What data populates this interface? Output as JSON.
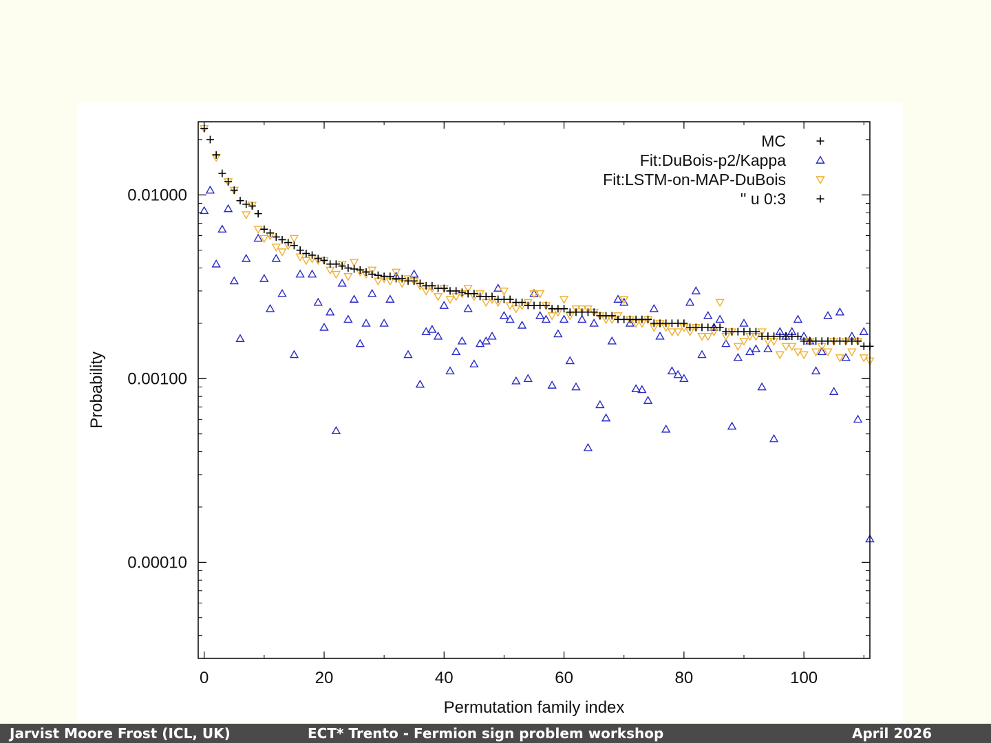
{
  "chart_data": {
    "type": "scatter",
    "title": "",
    "xlabel": "Permutation family index",
    "ylabel": "Probability",
    "xlim": [
      -1,
      111
    ],
    "ylim": [
      3e-05,
      0.025
    ],
    "yscale": "log",
    "legend_position": "top-right",
    "x_ticks": [
      0,
      20,
      40,
      60,
      80,
      100
    ],
    "x_tick_labels": [
      "0",
      "20",
      "40",
      "60",
      "80",
      "100"
    ],
    "y_ticks": [
      0.0001,
      0.001,
      0.01
    ],
    "y_tick_labels": [
      "0.00010",
      "0.00100",
      "0.01000"
    ],
    "series": [
      {
        "name": "MC",
        "marker": "plus",
        "color": "#000000",
        "x": [
          0,
          1,
          2,
          3,
          4,
          5,
          6,
          7,
          8,
          9,
          10,
          11,
          12,
          13,
          14,
          15,
          16,
          17,
          18,
          19,
          20,
          21,
          22,
          23,
          24,
          25,
          26,
          27,
          28,
          29,
          30,
          31,
          32,
          33,
          34,
          35,
          36,
          37,
          38,
          39,
          40,
          41,
          42,
          43,
          44,
          45,
          46,
          47,
          48,
          49,
          50,
          51,
          52,
          53,
          54,
          55,
          56,
          57,
          58,
          59,
          60,
          61,
          62,
          63,
          64,
          65,
          66,
          67,
          68,
          69,
          70,
          71,
          72,
          73,
          74,
          75,
          76,
          77,
          78,
          79,
          80,
          81,
          82,
          83,
          84,
          85,
          86,
          87,
          88,
          89,
          90,
          91,
          92,
          93,
          94,
          95,
          96,
          97,
          98,
          99,
          100,
          101,
          102,
          103,
          104,
          105,
          106,
          107,
          108,
          109,
          110,
          111
        ],
        "values": [
          0.023,
          0.02,
          0.0165,
          0.0131,
          0.0118,
          0.0106,
          0.0093,
          0.0089,
          0.0087,
          0.0079,
          0.0065,
          0.0062,
          0.0059,
          0.0057,
          0.0055,
          0.0053,
          0.005,
          0.0048,
          0.0047,
          0.0045,
          0.0044,
          0.0042,
          0.0042,
          0.0041,
          0.004,
          0.00395,
          0.0039,
          0.0038,
          0.0037,
          0.00365,
          0.0036,
          0.0036,
          0.0035,
          0.0035,
          0.0034,
          0.0034,
          0.0033,
          0.0032,
          0.0032,
          0.0031,
          0.0031,
          0.003,
          0.003,
          0.00295,
          0.0029,
          0.0029,
          0.0028,
          0.0028,
          0.0028,
          0.0027,
          0.0027,
          0.0027,
          0.0026,
          0.0026,
          0.0025,
          0.0025,
          0.0025,
          0.0025,
          0.0024,
          0.0024,
          0.0024,
          0.0023,
          0.0023,
          0.0023,
          0.0023,
          0.0023,
          0.0022,
          0.0022,
          0.0022,
          0.0021,
          0.0021,
          0.0021,
          0.0021,
          0.0021,
          0.0021,
          0.002,
          0.002,
          0.002,
          0.002,
          0.002,
          0.002,
          0.0019,
          0.0019,
          0.0019,
          0.0019,
          0.0019,
          0.0019,
          0.0018,
          0.0018,
          0.0018,
          0.0018,
          0.0018,
          0.0018,
          0.0017,
          0.0017,
          0.0017,
          0.0017,
          0.0017,
          0.0017,
          0.0017,
          0.0016,
          0.0016,
          0.0016,
          0.0016,
          0.0016,
          0.0016,
          0.0016,
          0.0016,
          0.0016,
          0.0016,
          0.0015,
          0.0015
        ]
      },
      {
        "name": "Fit:DuBois-p2/Kappa",
        "marker": "triangle-up",
        "color": "#2a2ac8",
        "x": [
          0,
          1,
          2,
          3,
          4,
          5,
          6,
          7,
          9,
          10,
          11,
          12,
          13,
          15,
          16,
          18,
          19,
          20,
          21,
          22,
          23,
          24,
          25,
          26,
          27,
          28,
          30,
          31,
          32,
          34,
          35,
          36,
          37,
          38,
          39,
          40,
          41,
          42,
          43,
          44,
          45,
          46,
          47,
          48,
          49,
          50,
          51,
          52,
          53,
          54,
          55,
          56,
          57,
          58,
          59,
          60,
          61,
          62,
          63,
          64,
          65,
          66,
          67,
          68,
          69,
          70,
          71,
          72,
          73,
          74,
          75,
          76,
          77,
          78,
          79,
          80,
          81,
          82,
          83,
          84,
          85,
          86,
          87,
          88,
          89,
          90,
          91,
          92,
          93,
          94,
          95,
          96,
          97,
          98,
          99,
          100,
          101,
          102,
          103,
          104,
          105,
          106,
          107,
          108,
          109,
          110,
          111
        ],
        "values": [
          0.0082,
          0.0106,
          0.0042,
          0.0065,
          0.0084,
          0.0034,
          0.00165,
          0.0045,
          0.0058,
          0.0035,
          0.0024,
          0.0045,
          0.0029,
          0.00135,
          0.0037,
          0.0037,
          0.0026,
          0.0019,
          0.0023,
          0.00052,
          0.0033,
          0.0021,
          0.0027,
          0.00155,
          0.002,
          0.0029,
          0.002,
          0.0027,
          0.0036,
          0.00135,
          0.0037,
          0.00093,
          0.0018,
          0.00185,
          0.0017,
          0.0025,
          0.0011,
          0.0014,
          0.0016,
          0.0024,
          0.0012,
          0.00155,
          0.0016,
          0.0017,
          0.0031,
          0.0022,
          0.0021,
          0.00097,
          0.00195,
          0.001,
          0.0029,
          0.0022,
          0.0021,
          0.00092,
          0.00175,
          0.0021,
          0.00125,
          0.0009,
          0.0021,
          0.00042,
          0.002,
          0.00072,
          0.00061,
          0.0016,
          0.0027,
          0.0026,
          0.002,
          0.00088,
          0.00087,
          0.00076,
          0.0024,
          0.0017,
          0.00053,
          0.0011,
          0.00105,
          0.001,
          0.0026,
          0.003,
          0.00135,
          0.0022,
          0.0019,
          0.0021,
          0.00155,
          0.00055,
          0.0013,
          0.002,
          0.0014,
          0.00145,
          0.0009,
          0.00145,
          0.00047,
          0.0018,
          0.0017,
          0.0018,
          0.0021,
          0.0017,
          0.0016,
          0.0011,
          0.0014,
          0.0022,
          0.00085,
          0.0023,
          0.0013,
          0.0017,
          0.0006,
          0.0018,
          0.000134
        ]
      },
      {
        "name": "Fit:LSTM-on-MAP-DuBois",
        "marker": "triangle-down",
        "color": "#f0b030",
        "x": [
          0,
          2,
          4,
          5,
          7,
          8,
          9,
          10,
          11,
          12,
          13,
          14,
          15,
          16,
          17,
          18,
          19,
          20,
          21,
          22,
          23,
          24,
          25,
          26,
          27,
          28,
          29,
          30,
          31,
          32,
          33,
          34,
          35,
          36,
          37,
          38,
          39,
          40,
          41,
          42,
          43,
          44,
          45,
          46,
          47,
          48,
          49,
          50,
          51,
          52,
          53,
          54,
          55,
          56,
          57,
          58,
          59,
          60,
          61,
          62,
          63,
          64,
          65,
          66,
          67,
          68,
          69,
          70,
          71,
          72,
          73,
          74,
          75,
          76,
          77,
          78,
          79,
          80,
          81,
          82,
          83,
          84,
          85,
          86,
          87,
          88,
          89,
          90,
          91,
          92,
          93,
          94,
          95,
          96,
          97,
          98,
          99,
          100,
          101,
          102,
          103,
          104,
          105,
          106,
          107,
          108,
          109,
          110,
          111
        ],
        "values": [
          0.023,
          0.016,
          0.0118,
          0.0106,
          0.0078,
          0.0088,
          0.0065,
          0.0058,
          0.006,
          0.0052,
          0.0049,
          0.0053,
          0.0058,
          0.0046,
          0.0044,
          0.0045,
          0.0044,
          0.0044,
          0.0039,
          0.0037,
          0.0042,
          0.0036,
          0.0043,
          0.0038,
          0.0037,
          0.0039,
          0.0034,
          0.0035,
          0.0034,
          0.0038,
          0.0033,
          0.0035,
          0.0034,
          0.0032,
          0.003,
          0.0031,
          0.0028,
          0.0031,
          0.0027,
          0.0028,
          0.0029,
          0.0031,
          0.0028,
          0.0029,
          0.0026,
          0.0027,
          0.0026,
          0.003,
          0.0025,
          0.0024,
          0.0025,
          0.0026,
          0.0029,
          0.0029,
          0.0025,
          0.0022,
          0.0023,
          0.0027,
          0.0022,
          0.0024,
          0.0024,
          0.0024,
          0.0023,
          0.0022,
          0.0021,
          0.0021,
          0.0022,
          0.0027,
          0.0021,
          0.002,
          0.002,
          0.0021,
          0.0019,
          0.002,
          0.0019,
          0.0018,
          0.0018,
          0.0019,
          0.0018,
          0.0019,
          0.0017,
          0.0017,
          0.0018,
          0.0026,
          0.0017,
          0.0018,
          0.0015,
          0.0016,
          0.0017,
          0.0017,
          0.0018,
          0.0016,
          0.0016,
          0.00135,
          0.0015,
          0.0015,
          0.0014,
          0.00135,
          0.0016,
          0.0014,
          0.0015,
          0.0014,
          0.0016,
          0.0013,
          0.0016,
          0.0014,
          0.0016,
          0.0013,
          0.00125
        ]
      }
    ],
    "legend": [
      {
        "label": "MC",
        "marker": "plus"
      },
      {
        "label": "Fit:DuBois-p2/Kappa",
        "marker": "triangle-up"
      },
      {
        "label": "Fit:LSTM-on-MAP-DuBois",
        "marker": "triangle-down"
      },
      {
        "label": "'' u 0:3",
        "marker": "plus"
      }
    ]
  },
  "footer": {
    "author": "Jarvist Moore Frost  (ICL, UK)",
    "event": "ECT* Trento - Fermion sign problem workshop",
    "date": "April  2026"
  },
  "colors": {
    "background": "#fdfdf0",
    "footer_bg": "#4a4a4a",
    "mc": "#000000",
    "dubois": "#2a2ac8",
    "lstm": "#f0b030"
  }
}
